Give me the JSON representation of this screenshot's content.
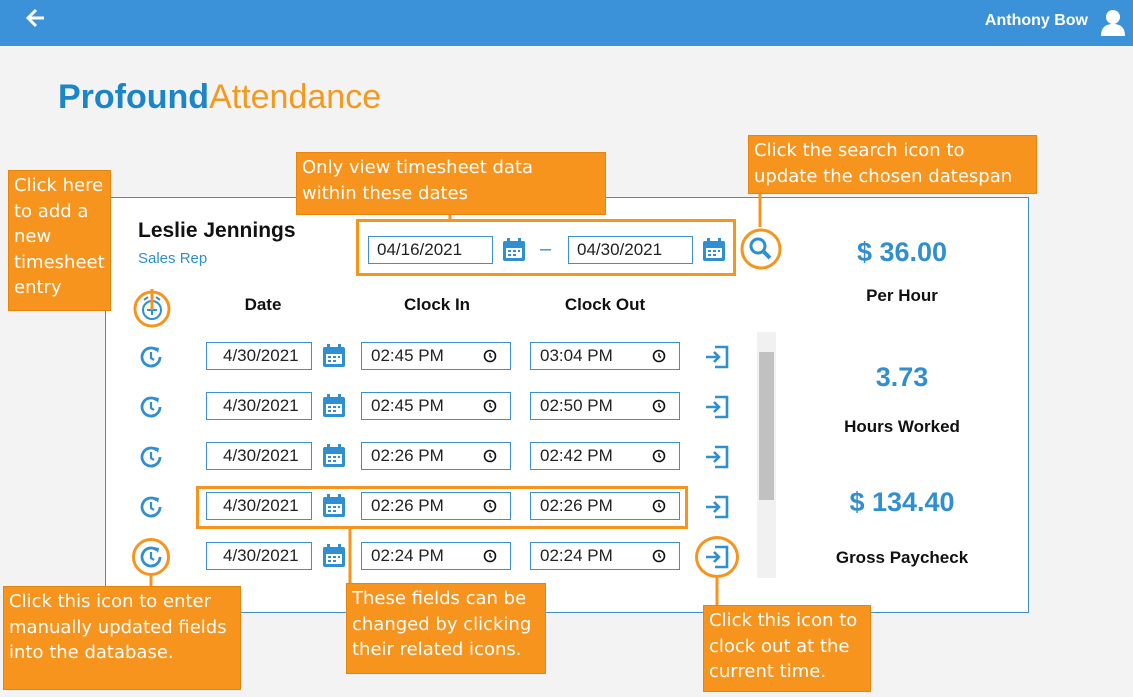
{
  "header": {
    "user_name": "Anthony Bow"
  },
  "brand": {
    "part1": "Profound",
    "part2": "Attendance"
  },
  "employee": {
    "name": "Leslie Jennings",
    "role": "Sales Rep"
  },
  "date_range": {
    "start": "04/16/2021",
    "separator": "–",
    "end": "04/30/2021"
  },
  "table": {
    "headers": [
      "Date",
      "Clock In",
      "Clock Out"
    ],
    "rows": [
      [
        "4/30/2021",
        "02:45 PM",
        "03:04 PM"
      ],
      [
        "4/30/2021",
        "02:45 PM",
        "02:50 PM"
      ],
      [
        "4/30/2021",
        "02:26 PM",
        "02:42 PM"
      ],
      [
        "4/30/2021",
        "02:26 PM",
        "02:26 PM"
      ],
      [
        "4/30/2021",
        "02:24 PM",
        "02:24 PM"
      ]
    ]
  },
  "stats": [
    {
      "value": "$ 36.00",
      "label": "Per Hour"
    },
    {
      "value": "3.73",
      "label": "Hours Worked"
    },
    {
      "value": "$ 134.40",
      "label": "Gross Paycheck"
    }
  ],
  "callouts": [
    {
      "lines": [
        "Click here",
        "to add a",
        "new",
        "timesheet",
        "entry"
      ]
    },
    {
      "lines": [
        "Only view timesheet data",
        "within these dates"
      ]
    },
    {
      "lines": [
        "Click the search icon to",
        "update the chosen datespan"
      ]
    },
    {
      "lines": [
        "Click this icon to enter",
        "manually updated fields",
        "into the database."
      ]
    },
    {
      "lines": [
        "These fields can be",
        "changed by clicking",
        "their related icons."
      ]
    },
    {
      "lines": [
        "Click this icon to",
        "clock out at the",
        "current time."
      ]
    }
  ]
}
